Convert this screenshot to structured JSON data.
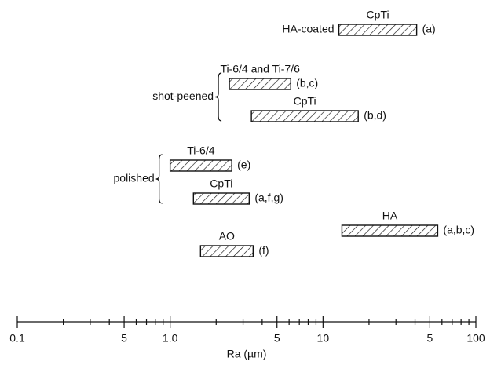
{
  "chart_data": {
    "type": "range",
    "xlabel": "Ra (µm)",
    "xscale": "log",
    "xlim": [
      0.1,
      100
    ],
    "xticks": [
      0.1,
      {
        "value": 0.5,
        "label": "5"
      },
      {
        "value": 1,
        "label": "1.0"
      },
      5,
      10,
      {
        "value": 50,
        "label": "5"
      },
      100
    ],
    "xminorticks": [
      0.2,
      0.3,
      0.4,
      0.6,
      0.7,
      0.8,
      0.9,
      2,
      3,
      4,
      6,
      7,
      8,
      9,
      20,
      30,
      40,
      60,
      70,
      80,
      90
    ],
    "groups": [
      {
        "label": "HA-coated",
        "bars": [
          {
            "name": "CpTi",
            "range": [
              12.7,
              41
            ],
            "note": "(a)"
          }
        ]
      },
      {
        "label": "shot-peened",
        "bars": [
          {
            "name": "Ti-6/4 and Ti-7/6",
            "range": [
              2.44,
              6.15
            ],
            "note": "(b,c)"
          },
          {
            "name": "CpTi",
            "range": [
              3.4,
              17
            ],
            "note": "(b,d)"
          }
        ]
      },
      {
        "label": "polished",
        "bars": [
          {
            "name": "Ti-6/4",
            "range": [
              1.0,
              2.53
            ],
            "note": "(e)"
          },
          {
            "name": "CpTi",
            "range": [
              1.42,
              3.29
            ],
            "note": "(a,f,g)"
          }
        ]
      }
    ],
    "bars": [
      {
        "name": "HA",
        "range": [
          13.3,
          56.3
        ],
        "note": "(a,b,c)"
      },
      {
        "name": "AO",
        "range": [
          1.58,
          3.49
        ],
        "note": "(f)"
      }
    ]
  }
}
